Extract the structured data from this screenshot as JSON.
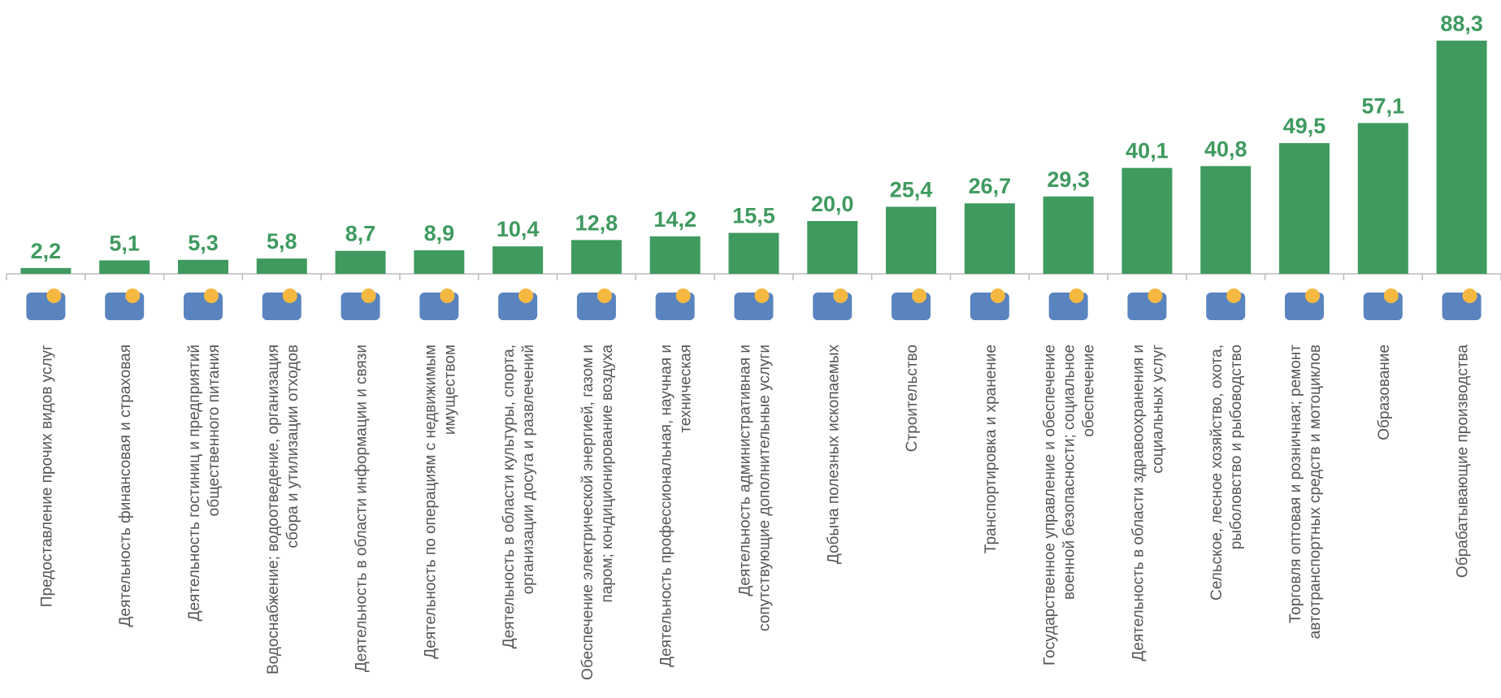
{
  "chart_data": {
    "type": "bar",
    "categories": [
      "Предоставление прочих видов услуг",
      "Деятельность финансовая и страховая",
      "Деятельность гостиниц и предприятий общественного питания",
      "Водоснабжение; водоотведение, организация сбора и утилизации отходов",
      "Деятельность в области информации и связи",
      "Деятельность по операциям с недвижимым имуществом",
      "Деятельность в области культуры, спорта, организации досуга и развлечений",
      "Обеспечение электрической энергией, газом и паром; кондиционирование воздуха",
      "Деятельность профессиональная, научная и техническая",
      "Деятельность административная и сопутствующие дополнительные услуги",
      "Добыча полезных ископаемых",
      "Строительство",
      "Транспортировка и хранение",
      "Государственное управление и обеспечение военной безопасности; социальное обеспечение",
      "Деятельность в области здравоохранения и социальных услуг",
      "Сельское, лесное хозяйство, охота, рыболовство и рыбоводство",
      "Торговля оптовая и розничная; ремонт автотранспортных средств и мотоциклов",
      "Образование",
      "Обрабатывающие производства"
    ],
    "values": [
      2.2,
      5.1,
      5.3,
      5.8,
      8.7,
      8.9,
      10.4,
      12.8,
      14.2,
      15.5,
      20.0,
      25.4,
      26.7,
      29.3,
      40.1,
      40.8,
      49.5,
      57.1,
      88.3
    ],
    "value_labels": [
      "2,2",
      "5,1",
      "5,3",
      "5,8",
      "8,7",
      "8,9",
      "10,4",
      "12,8",
      "14,2",
      "15,5",
      "20,0",
      "25,4",
      "26,7",
      "29,3",
      "40,1",
      "40,8",
      "49,5",
      "57,1",
      "88,3"
    ],
    "color": "#3f9a5f"
  }
}
